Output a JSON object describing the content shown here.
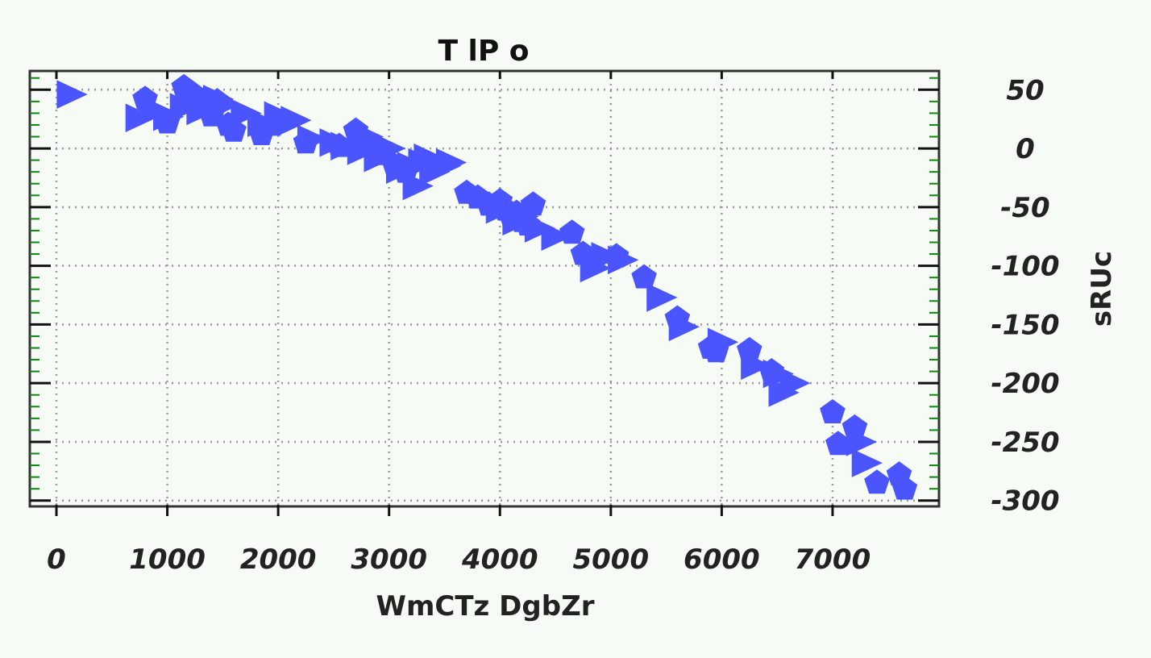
{
  "chart_data": {
    "type": "scatter",
    "title": "T lP o",
    "xlabel": "WmCTz  DgbZr",
    "ylabel": "sRUc",
    "xlim": [
      -240,
      7960
    ],
    "ylim": [
      -305,
      66
    ],
    "x_ticks": [
      "0",
      "1000",
      "2000",
      "3000",
      "4000",
      "5000",
      "6000",
      "7000"
    ],
    "x_tick_values": [
      0,
      1000,
      2000,
      3000,
      4000,
      5000,
      6000,
      7000
    ],
    "y_ticks": [
      "50",
      "0",
      "-50",
      "-100",
      "-150",
      "-200",
      "-250",
      "-300"
    ],
    "y_tick_values": [
      50,
      0,
      -50,
      -100,
      -150,
      -200,
      -250,
      -300
    ],
    "y_axis_side": "right",
    "grid": true,
    "marker_color": "#4a55ff",
    "series": [
      {
        "marker": "triangle-right",
        "x": [
          130,
          750,
          880,
          1000,
          1150,
          1250,
          1300,
          1450,
          1500,
          1700,
          1850,
          2000,
          2150,
          2300,
          2500,
          2600,
          2750,
          2800,
          2850,
          2900,
          3000,
          3100,
          3200,
          3250,
          3300,
          3350,
          3400,
          3500,
          3550,
          4000,
          4150,
          4200,
          4350,
          4500,
          4850,
          4950,
          5100,
          5450,
          5650,
          6000,
          6300,
          6500,
          6550,
          6650,
          7250,
          7300
        ],
        "y": [
          46,
          26,
          33,
          27,
          35,
          48,
          32,
          42,
          37,
          30,
          22,
          28,
          24,
          8,
          5,
          2,
          -2,
          10,
          3,
          -8,
          0,
          -18,
          -15,
          -32,
          -12,
          -8,
          -20,
          -15,
          -12,
          -52,
          -62,
          -58,
          -68,
          -75,
          -102,
          -92,
          -95,
          -127,
          -152,
          -165,
          -185,
          -192,
          -208,
          -200,
          -250,
          -268
        ]
      },
      {
        "marker": "pentagon",
        "x": [
          800,
          1000,
          1150,
          1250,
          1400,
          1450,
          1550,
          1600,
          1850,
          1950,
          2250,
          2550,
          2700,
          2900,
          3050,
          3150,
          3700,
          3800,
          3900,
          4000,
          4050,
          4100,
          4150,
          4200,
          4250,
          4300,
          4650,
          4750,
          5050,
          5300,
          5600,
          5900,
          5950,
          6250,
          6450,
          7000,
          7050,
          7200,
          7400,
          7600,
          7650
        ],
        "y": [
          42,
          22,
          52,
          45,
          28,
          40,
          20,
          15,
          12,
          20,
          5,
          2,
          15,
          -5,
          -15,
          -20,
          -38,
          -42,
          -48,
          -45,
          -52,
          -58,
          -55,
          -62,
          -65,
          -48,
          -72,
          -90,
          -92,
          -110,
          -145,
          -170,
          -173,
          -172,
          -190,
          -225,
          -252,
          -238,
          -285,
          -278,
          -290
        ]
      }
    ]
  }
}
